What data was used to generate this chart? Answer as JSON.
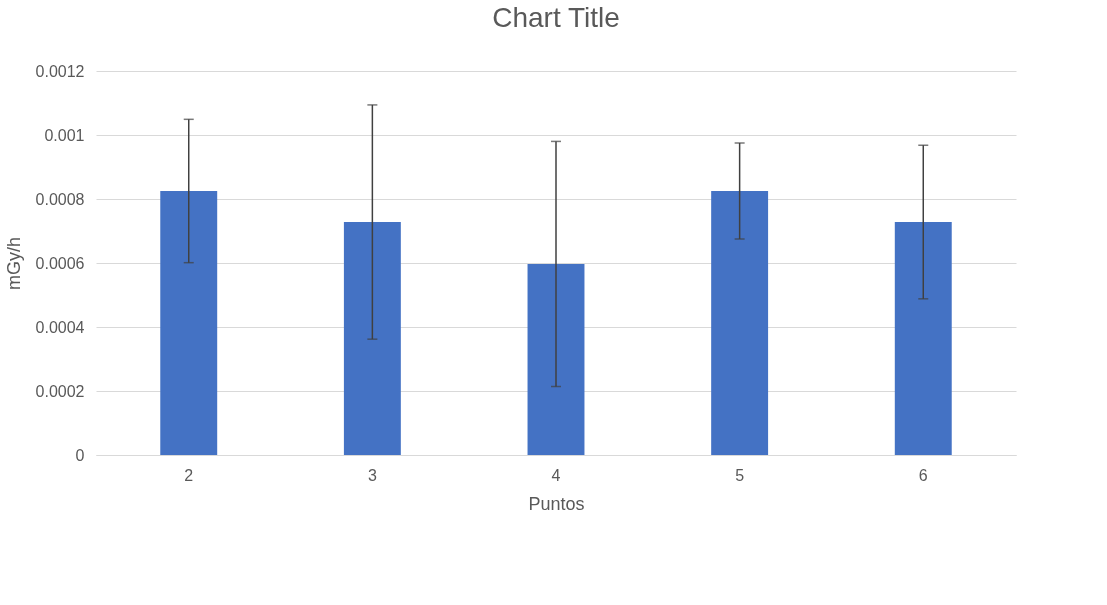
{
  "chart_data": {
    "type": "bar",
    "title": "Chart Title",
    "xlabel": "Puntos",
    "ylabel": "mGy/h",
    "categories": [
      "2",
      "3",
      "4",
      "5",
      "6"
    ],
    "values": [
      0.000825,
      0.000728,
      0.000597,
      0.000825,
      0.000728
    ],
    "errors": [
      0.000224,
      0.000366,
      0.000383,
      0.00015,
      0.00024
    ],
    "color": "#4472c4",
    "ylim": [
      0,
      0.0012
    ],
    "yticks": [
      0,
      0.0002,
      0.0004,
      0.0006,
      0.0008,
      0.001,
      0.0012
    ],
    "grid": "y"
  }
}
